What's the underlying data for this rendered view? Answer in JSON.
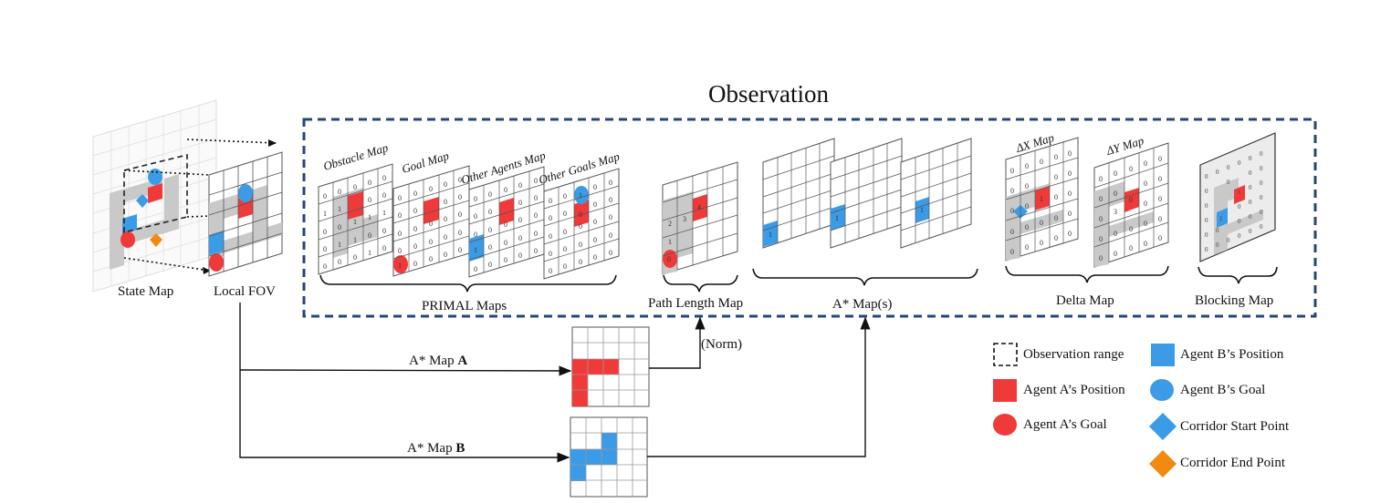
{
  "title": "Observation",
  "inputs": {
    "state_map": "State Map",
    "local_fov": "Local FOV"
  },
  "sections": {
    "primal": "PRIMAL Maps",
    "path_length": "Path Length Map",
    "astar": "A* Map(s)",
    "delta": "Delta Map",
    "blocking": "Blocking Map"
  },
  "sheet_titles": {
    "obstacle": "Obstacle Map",
    "goal": "Goal Map",
    "other_agents": "Other Agents Map",
    "other_goals": "Other Goals Map",
    "dx": "ΔX Map",
    "dy": "ΔY Map"
  },
  "astar_a": {
    "prefix": "A* Map ",
    "letter": "A"
  },
  "astar_b": {
    "prefix": "A* Map ",
    "letter": "B"
  },
  "norm": "(Norm)",
  "legend": {
    "obs_range": "Observation range",
    "agent_a_pos": "Agent A’s Position",
    "agent_a_goal": "Agent A’s Goal",
    "agent_b_pos": "Agent B’s Position",
    "agent_b_goal": "Agent B’s Goal",
    "corridor_start": "Corridor Start Point",
    "corridor_end": "Corridor End Point"
  },
  "colors": {
    "red": "#f03a3a",
    "blue": "#3c9be6",
    "orange": "#f28a12",
    "gray": "#c9c9c9",
    "frame": "#26467a"
  }
}
